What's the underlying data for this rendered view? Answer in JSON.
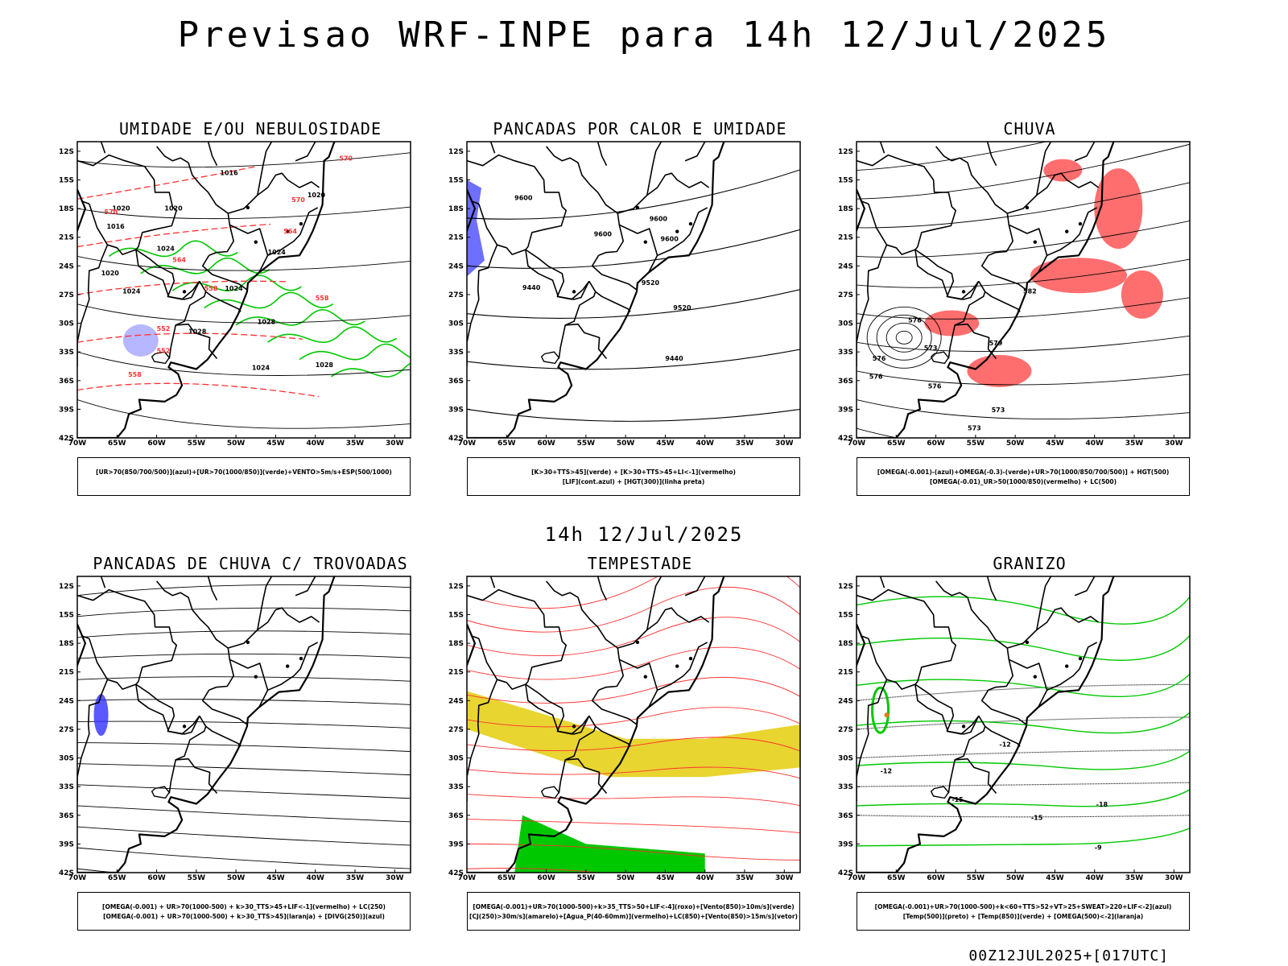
{
  "header": {
    "title": "Previsao WRF-INPE  para 14h 12/Jul/2025",
    "subtitle": "14h 12/Jul/2025",
    "footer": "00Z12JUL2025+[017UTC]"
  },
  "axes": {
    "lat_labels": [
      "12S",
      "15S",
      "18S",
      "21S",
      "24S",
      "27S",
      "30S",
      "33S",
      "36S",
      "39S",
      "42S"
    ],
    "lon_labels": [
      "70W",
      "65W",
      "60W",
      "55W",
      "50W",
      "45W",
      "40W",
      "35W",
      "30W"
    ]
  },
  "panels": [
    {
      "id": "umidade",
      "title": "UMIDADE E/OU NEBULOSIDADE",
      "legend": [
        "[UR>70(850/700/500)](azul)+[UR>70(1000/850)](verde)+VENTO>5m/s+ESP(500/1000)"
      ],
      "contour_labels": [
        "1016",
        "1020",
        "1020",
        "1020",
        "1024",
        "1024",
        "1024",
        "1024",
        "1028",
        "1028",
        "1028",
        "1024",
        "1016",
        "1020",
        "570",
        "570",
        "564",
        "558",
        "558",
        "552",
        "552",
        "564",
        "570",
        "558"
      ]
    },
    {
      "id": "pancadas-calor",
      "title": "PANCADAS POR CALOR E UMIDADE",
      "legend": [
        "[K>30+TTS>45](verde) + [K>30+TTS>45+LI<-1](vermelho)",
        "[LIF](cont.azul) + [HGT(300)](linha preta)"
      ],
      "contour_labels": [
        "9600",
        "9600",
        "9600",
        "9600",
        "9520",
        "9520",
        "9440",
        "9440"
      ]
    },
    {
      "id": "chuva",
      "title": "CHUVA",
      "legend": [
        "[OMEGA(-0.001)-(azul)+OMEGA(-0.3)-(verde)+UR>70(1000/850/700/500)] + HGT(500)",
        "[OMEGA(-0.01)_UR>50(1000/850)(vermelho) + LC(500)"
      ],
      "contour_labels": [
        "576",
        "573",
        "576",
        "582",
        "579",
        "576",
        "573",
        "573",
        "576"
      ]
    },
    {
      "id": "pancadas-trovoadas",
      "title": "PANCADAS DE CHUVA C/ TROVOADAS",
      "legend": [
        "[OMEGA(-0.001) + UR>70(1000-500) + k>30_TTS>45+LIF<-1](vermelho) + LC(250)",
        "[OMEGA(-0.001) + UR>70(1000-500) + k>30_TTS>45](laranja) + [DIVG(250)](azul)"
      ],
      "contour_labels": []
    },
    {
      "id": "tempestade",
      "title": "TEMPESTADE",
      "legend": [
        "[OMEGA(-0.001)+UR>70(1000-500)+k>35_TTS>50+LIF<-4](roxo)+[Vento(850)>10m/s](verde)",
        "[CJ(250)>30m/s](amarelo)+[Agua_P(40-60mm)](vermelho)+LC(850)+[Vento(850)>15m/s](vetor)"
      ],
      "contour_labels": []
    },
    {
      "id": "granizo",
      "title": "GRANIZO",
      "legend": [
        "[OMEGA(-0.001)+UR>70(1000-500)+k<60+TTS>52+VT>25+SWEAT>220+LIF<-2](azul)",
        "[Temp(500)](preto) + [Temp(850)](verde) + [OMEGA(500)<-2](laranja)"
      ],
      "contour_labels": [
        "-12",
        "-12",
        "-15",
        "-15",
        "-18",
        "-9"
      ]
    }
  ],
  "colors": {
    "border": "#000000",
    "green": "#00c800",
    "red": "#ff3030",
    "blue": "#3030ff",
    "lightblue": "#aaaaff",
    "yellow": "#e8d530",
    "orange": "#e07a20"
  }
}
